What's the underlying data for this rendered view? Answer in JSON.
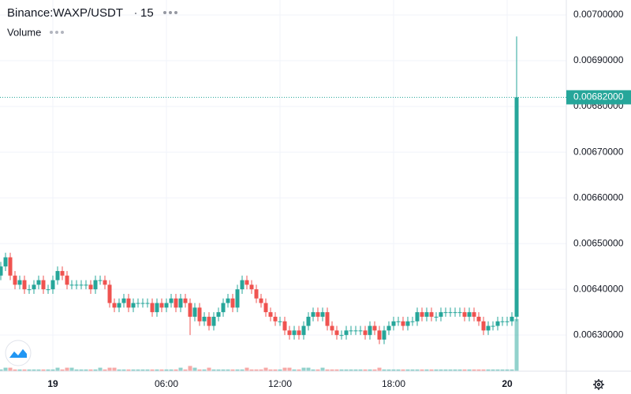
{
  "chart_data": {
    "type": "candlestick",
    "symbol": "Binance:WAXP/USDT",
    "interval": "15",
    "volume_label": "Volume",
    "up_color": "#26a69a",
    "down_color": "#ef5350",
    "grid": true,
    "x": [
      -2.75,
      -2.5,
      -2.25,
      -2,
      -1.75,
      -1.5,
      -1.25,
      -1,
      -0.75,
      -0.5,
      -0.25,
      0,
      0.25,
      0.5,
      0.75,
      1,
      1.25,
      1.5,
      1.75,
      2,
      2.25,
      2.5,
      2.75,
      3,
      3.25,
      3.5,
      3.75,
      4,
      4.25,
      4.5,
      4.75,
      5,
      5.25,
      5.5,
      5.75,
      6,
      6.25,
      6.5,
      6.75,
      7,
      7.25,
      7.5,
      7.75,
      8,
      8.25,
      8.5,
      8.75,
      9,
      9.25,
      9.5,
      9.75,
      10,
      10.25,
      10.5,
      10.75,
      11,
      11.25,
      11.5,
      11.75,
      12,
      12.25,
      12.5,
      12.75,
      13,
      13.25,
      13.5,
      13.75,
      14,
      14.25,
      14.5,
      14.75,
      15,
      15.25,
      15.5,
      15.75,
      16,
      16.25,
      16.5,
      16.75,
      17,
      17.25,
      17.5,
      17.75,
      18,
      18.25,
      18.5,
      18.75,
      19,
      19.25,
      19.5,
      19.75,
      20,
      20.25,
      20.5,
      20.75,
      21,
      21.25,
      21.5,
      21.75,
      22,
      22.25,
      22.5,
      22.75,
      23,
      23.25,
      23.5,
      23.75,
      24,
      24.25,
      24.5
    ],
    "open": [
      0.00643,
      0.00645,
      0.00647,
      0.00643,
      0.00641,
      0.00642,
      0.0064,
      0.0064,
      0.00641,
      0.00642,
      0.0064,
      0.0064,
      0.00642,
      0.00644,
      0.00643,
      0.00641,
      0.00641,
      0.00641,
      0.00641,
      0.00641,
      0.0064,
      0.00642,
      0.00642,
      0.00641,
      0.00637,
      0.00636,
      0.00637,
      0.00638,
      0.00636,
      0.00637,
      0.00637,
      0.00637,
      0.00637,
      0.00635,
      0.00637,
      0.00636,
      0.00637,
      0.00638,
      0.00636,
      0.00638,
      0.00637,
      0.00634,
      0.00636,
      0.00633,
      0.00634,
      0.00632,
      0.00634,
      0.00635,
      0.00637,
      0.00638,
      0.00636,
      0.0064,
      0.00642,
      0.00641,
      0.0064,
      0.00638,
      0.00637,
      0.00635,
      0.00634,
      0.00633,
      0.00633,
      0.00631,
      0.0063,
      0.00631,
      0.0063,
      0.00632,
      0.00634,
      0.00635,
      0.00634,
      0.00635,
      0.00632,
      0.00631,
      0.0063,
      0.0063,
      0.00631,
      0.00631,
      0.00631,
      0.00631,
      0.0063,
      0.00632,
      0.00631,
      0.00629,
      0.00631,
      0.00632,
      0.00633,
      0.00633,
      0.00632,
      0.00633,
      0.00633,
      0.00635,
      0.00634,
      0.00635,
      0.00634,
      0.00634,
      0.00635,
      0.00635,
      0.00635,
      0.00635,
      0.00635,
      0.00634,
      0.00635,
      0.00634,
      0.00633,
      0.00631,
      0.00632,
      0.00632,
      0.00633,
      0.00633,
      0.00633,
      0.00634
    ],
    "high": [
      0.00646,
      0.00648,
      0.00648,
      0.00644,
      0.00643,
      0.00643,
      0.00641,
      0.00642,
      0.00643,
      0.00643,
      0.00641,
      0.00643,
      0.00645,
      0.00645,
      0.00644,
      0.00642,
      0.00642,
      0.00642,
      0.00642,
      0.00642,
      0.00643,
      0.00643,
      0.00643,
      0.00642,
      0.00638,
      0.00638,
      0.00639,
      0.00639,
      0.00638,
      0.00638,
      0.00638,
      0.00638,
      0.00638,
      0.00638,
      0.00638,
      0.00638,
      0.00639,
      0.00639,
      0.00639,
      0.00639,
      0.00638,
      0.00637,
      0.00637,
      0.00635,
      0.00635,
      0.00635,
      0.00636,
      0.00638,
      0.00639,
      0.00639,
      0.00641,
      0.00643,
      0.00643,
      0.00642,
      0.00641,
      0.00639,
      0.00638,
      0.00636,
      0.00635,
      0.00634,
      0.00634,
      0.00632,
      0.00632,
      0.00632,
      0.00633,
      0.00635,
      0.00636,
      0.00636,
      0.00636,
      0.00636,
      0.00633,
      0.00632,
      0.00631,
      0.00632,
      0.00632,
      0.00632,
      0.00632,
      0.00632,
      0.00633,
      0.00633,
      0.00632,
      0.00632,
      0.00633,
      0.00634,
      0.00634,
      0.00634,
      0.00634,
      0.00634,
      0.00636,
      0.00636,
      0.00636,
      0.00636,
      0.00635,
      0.00636,
      0.00636,
      0.00636,
      0.00636,
      0.00636,
      0.00636,
      0.00636,
      0.00636,
      0.00635,
      0.00634,
      0.00633,
      0.00633,
      0.00634,
      0.00634,
      0.00634,
      0.00635,
      0.006953
    ],
    "low": [
      0.00642,
      0.00644,
      0.00642,
      0.0064,
      0.0064,
      0.00639,
      0.00639,
      0.00639,
      0.0064,
      0.00639,
      0.00639,
      0.00639,
      0.00641,
      0.00642,
      0.0064,
      0.0064,
      0.0064,
      0.0064,
      0.0064,
      0.00639,
      0.00639,
      0.00641,
      0.0064,
      0.00636,
      0.00635,
      0.00635,
      0.00636,
      0.00635,
      0.00635,
      0.00636,
      0.00636,
      0.00636,
      0.00634,
      0.00634,
      0.00635,
      0.00635,
      0.00636,
      0.00635,
      0.00635,
      0.00636,
      0.0063,
      0.00633,
      0.00632,
      0.00632,
      0.00631,
      0.00631,
      0.00633,
      0.00634,
      0.00636,
      0.00635,
      0.00635,
      0.00639,
      0.0064,
      0.00639,
      0.00637,
      0.00636,
      0.00634,
      0.00633,
      0.00632,
      0.00632,
      0.0063,
      0.00629,
      0.00629,
      0.00629,
      0.00629,
      0.00631,
      0.00633,
      0.00633,
      0.00633,
      0.00631,
      0.0063,
      0.00629,
      0.00629,
      0.00629,
      0.0063,
      0.0063,
      0.0063,
      0.00629,
      0.00629,
      0.0063,
      0.00628,
      0.00628,
      0.0063,
      0.00631,
      0.00632,
      0.00631,
      0.00631,
      0.00632,
      0.00632,
      0.00633,
      0.00633,
      0.00633,
      0.00633,
      0.00633,
      0.00634,
      0.00634,
      0.00634,
      0.00634,
      0.00633,
      0.00633,
      0.00633,
      0.00632,
      0.0063,
      0.0063,
      0.00631,
      0.00631,
      0.00632,
      0.00632,
      0.00632,
      0.00633
    ],
    "close": [
      0.00645,
      0.00647,
      0.00643,
      0.00641,
      0.00642,
      0.0064,
      0.0064,
      0.00641,
      0.00642,
      0.0064,
      0.0064,
      0.00642,
      0.00644,
      0.00643,
      0.00641,
      0.00641,
      0.00641,
      0.00641,
      0.00641,
      0.0064,
      0.00642,
      0.00642,
      0.00641,
      0.00637,
      0.00636,
      0.00637,
      0.00638,
      0.00636,
      0.00637,
      0.00637,
      0.00637,
      0.00637,
      0.00635,
      0.00637,
      0.00636,
      0.00637,
      0.00638,
      0.00636,
      0.00638,
      0.00637,
      0.00634,
      0.00636,
      0.00633,
      0.00634,
      0.00632,
      0.00634,
      0.00635,
      0.00637,
      0.00638,
      0.00636,
      0.0064,
      0.00642,
      0.00641,
      0.0064,
      0.00638,
      0.00637,
      0.00635,
      0.00634,
      0.00633,
      0.00633,
      0.00631,
      0.0063,
      0.00631,
      0.0063,
      0.00632,
      0.00634,
      0.00635,
      0.00634,
      0.00635,
      0.00632,
      0.00631,
      0.0063,
      0.0063,
      0.00631,
      0.00631,
      0.00631,
      0.00631,
      0.0063,
      0.00632,
      0.00631,
      0.00629,
      0.00631,
      0.00632,
      0.00633,
      0.00633,
      0.00632,
      0.00633,
      0.00633,
      0.00635,
      0.00634,
      0.00635,
      0.00634,
      0.00634,
      0.00635,
      0.00635,
      0.00635,
      0.00635,
      0.00635,
      0.00634,
      0.00635,
      0.00634,
      0.00633,
      0.00631,
      0.00632,
      0.00632,
      0.00633,
      0.00633,
      0.00633,
      0.00634,
      0.00682
    ],
    "volume": [
      1,
      2,
      2,
      1,
      1,
      1,
      1,
      1,
      1,
      1,
      1,
      1,
      2,
      1,
      2,
      2,
      1,
      1,
      1,
      1,
      1,
      2,
      1,
      2,
      2,
      1,
      1,
      1,
      1,
      1,
      1,
      1,
      1,
      1,
      1,
      1,
      1,
      1,
      2,
      1,
      3,
      2,
      1,
      1,
      2,
      1,
      1,
      1,
      1,
      1,
      1,
      1,
      2,
      1,
      1,
      1,
      2,
      1,
      1,
      1,
      2,
      2,
      1,
      1,
      2,
      2,
      1,
      1,
      2,
      1,
      1,
      1,
      1,
      1,
      1,
      1,
      1,
      1,
      1,
      1,
      2,
      1,
      1,
      1,
      1,
      1,
      1,
      1,
      1,
      1,
      1,
      1,
      1,
      1,
      1,
      1,
      1,
      1,
      1,
      1,
      1,
      1,
      1,
      1,
      1,
      1,
      1,
      1,
      1,
      30
    ],
    "volume_ylim": [
      0,
      100
    ],
    "xlim": [
      -2.792,
      27.125
    ],
    "xticks": [
      {
        "value": 0,
        "label": "19"
      },
      {
        "value": 6,
        "label": "06:00"
      },
      {
        "value": 12,
        "label": "12:00"
      },
      {
        "value": 18,
        "label": "18:00"
      },
      {
        "value": 24,
        "label": "20"
      }
    ],
    "ylim": [
      0.006221,
      0.0070328
    ],
    "yticks": [
      {
        "value": 0.0063,
        "label": "0.00630000"
      },
      {
        "value": 0.0064,
        "label": "0.00640000"
      },
      {
        "value": 0.0065,
        "label": "0.00650000"
      },
      {
        "value": 0.0066,
        "label": "0.00660000"
      },
      {
        "value": 0.0067,
        "label": "0.00670000"
      },
      {
        "value": 0.0068,
        "label": "0.00680000"
      },
      {
        "value": 0.0069,
        "label": "0.00690000"
      },
      {
        "value": 0.007,
        "label": "0.00700000"
      }
    ],
    "last_price": {
      "value": 0.00682,
      "label": "0.00682000"
    }
  }
}
